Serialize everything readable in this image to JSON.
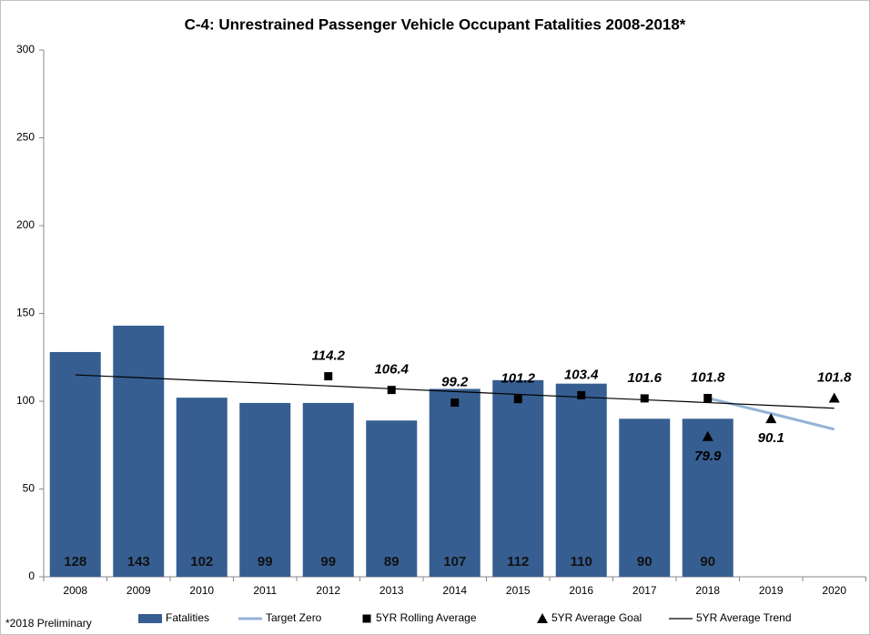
{
  "chart_data": {
    "type": "bar",
    "title": "C-4: Unrestrained Passenger Vehicle Occupant Fatalities 2008-2018*",
    "footnote": "*2018 Preliminary",
    "categories": [
      "2008",
      "2009",
      "2010",
      "2011",
      "2012",
      "2013",
      "2014",
      "2015",
      "2016",
      "2017",
      "2018",
      "2019",
      "2020"
    ],
    "ylim": [
      0,
      300
    ],
    "yticks": [
      0,
      50,
      100,
      150,
      200,
      250,
      300
    ],
    "grid": false,
    "legend": "bottom",
    "series": [
      {
        "name": "Fatalities",
        "type": "bar",
        "color": "#365e91",
        "values": [
          128,
          143,
          102,
          99,
          99,
          89,
          107,
          112,
          110,
          90,
          90,
          null,
          null
        ]
      },
      {
        "name": "Target Zero",
        "type": "line",
        "color": "#95b3d7",
        "values": [
          null,
          null,
          null,
          null,
          null,
          null,
          null,
          null,
          null,
          null,
          101.8,
          93,
          84
        ]
      },
      {
        "name": "5YR Rolling Average",
        "type": "scatter",
        "marker": "square",
        "color": "#000000",
        "values": [
          null,
          null,
          null,
          null,
          114.2,
          106.4,
          99.2,
          101.2,
          103.4,
          101.6,
          101.8,
          null,
          null
        ]
      },
      {
        "name": "5YR Average Goal",
        "type": "scatter",
        "marker": "triangle",
        "color": "#000000",
        "values": [
          null,
          null,
          null,
          null,
          null,
          null,
          null,
          null,
          null,
          null,
          79.9,
          90.1,
          101.8
        ]
      },
      {
        "name": "5YR Average Trend",
        "type": "line",
        "color": "#000000",
        "values": [
          115,
          113.4,
          111.8,
          110.3,
          108.7,
          107.1,
          105.5,
          103.9,
          102.3,
          100.8,
          99.2,
          97.6,
          96
        ]
      }
    ]
  }
}
